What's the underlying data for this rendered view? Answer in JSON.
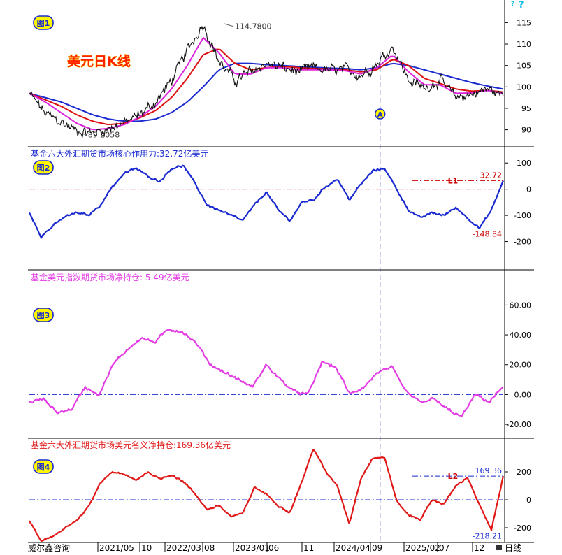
{
  "help_icon": "question-mark-icon",
  "footer": {
    "source": "威尔鑫咨询",
    "dates": [
      "2021/05",
      "10",
      "2022/03",
      "08",
      "2023/01",
      "06",
      "11",
      "2024/04",
      "09",
      "2025/02",
      "07",
      "12"
    ],
    "period": "日线"
  },
  "colors": {
    "price": "#111111",
    "ma_short": "#dd22dd",
    "ma_mid": "#dd1111",
    "ma_long": "#1a2ad0",
    "panel2": "#1a2ad0",
    "panel3": "#e43ce4",
    "panel4": "#e01818",
    "ref_red": "#cc0000",
    "ref_blue": "#1a2ad0",
    "title_red": "#ff2200",
    "badge": "#fff700"
  },
  "chart_data": [
    {
      "type": "line",
      "badge": "图1",
      "title": "美元日K线",
      "ylim": [
        87,
        118
      ],
      "yticks": [
        90,
        95,
        100,
        105,
        110,
        115
      ],
      "annotations": [
        {
          "label": "114.7800",
          "x": 0.41,
          "y": 114.78
        },
        {
          "label": "89.2058",
          "x": 0.1,
          "y": 89.21
        }
      ],
      "marker": {
        "label": "A",
        "x": 0.74
      },
      "series": [
        {
          "name": "",
          "role": "price",
          "values": [
            98.5,
            93.8,
            91.8,
            89.8,
            89.2,
            90.3,
            91.5,
            93.5,
            96.5,
            101.5,
            108.5,
            114.78,
            106,
            101.5,
            103.5,
            105.5,
            104.5,
            103.5,
            104.5,
            103.8,
            104,
            102.8,
            105.5,
            109.5,
            101.5,
            99.8,
            101.5,
            97.5,
            98.3,
            99.5,
            98
          ]
        },
        {
          "name": "",
          "role": "ma_short",
          "values": [
            98.5,
            96.5,
            94,
            91.5,
            90,
            90.3,
            91.2,
            93,
            95.5,
            99.5,
            105,
            111.5,
            108,
            103,
            103,
            104.5,
            104.5,
            104,
            104,
            104,
            103.8,
            103,
            104.5,
            107.5,
            103.5,
            100.5,
            100.5,
            98.5,
            98.6,
            99.2,
            98.5
          ]
        },
        {
          "name": "",
          "role": "ma_mid",
          "values": [
            98.5,
            97,
            95.5,
            93.5,
            92,
            91.2,
            91.5,
            92.8,
            94.5,
            97.5,
            102,
            107.5,
            109,
            105.5,
            104,
            104.5,
            104.8,
            104.5,
            104.3,
            104.2,
            104,
            103.5,
            104,
            106.5,
            105,
            102,
            100.8,
            99.5,
            99,
            99.2,
            98.8
          ]
        },
        {
          "name": "",
          "role": "ma_long",
          "values": [
            98.5,
            97.5,
            96.5,
            95,
            93.5,
            92.5,
            92,
            92,
            92.5,
            94,
            96.5,
            100,
            104,
            105.5,
            105.5,
            105.2,
            105,
            104.8,
            104.6,
            104.4,
            104.3,
            104,
            104.5,
            105.5,
            105,
            104,
            103,
            102,
            101,
            100.2,
            99.5
          ]
        }
      ]
    },
    {
      "type": "line",
      "badge": "图2",
      "title": "基金六大外汇期货市场核心作用力:32.72亿美元",
      "ylim": [
        -300,
        130
      ],
      "yticks": [
        -200,
        -100,
        0,
        100
      ],
      "reference_lines": [
        {
          "label": "L1",
          "y": 32.72
        },
        {
          "label": "",
          "y": 0
        }
      ],
      "annotations": [
        {
          "label": "32.72",
          "y": 32.72
        },
        {
          "label": "-148.84",
          "y": -148.84
        }
      ],
      "series": [
        {
          "name": "",
          "values": [
            -90,
            -180,
            -140,
            -105,
            -90,
            -100,
            -60,
            10,
            60,
            80,
            50,
            30,
            80,
            90,
            20,
            -60,
            -80,
            -100,
            -120,
            -60,
            -10,
            -80,
            -120,
            -50,
            -40,
            10,
            40,
            -40,
            20,
            70,
            80,
            0,
            -80,
            -110,
            -90,
            -100,
            -70,
            -110,
            -148.84,
            -80,
            32.72
          ]
        }
      ]
    },
    {
      "type": "line",
      "badge": "图3",
      "title": "基金美元指数期货市场净持仓:  5.49亿美元",
      "ylim": [
        -27,
        78
      ],
      "yticks": [
        -20,
        0,
        20,
        40,
        60
      ],
      "ytick_labels": [
        "-20.00",
        "0.00",
        "20.00",
        "40.00",
        "60.00"
      ],
      "reference_lines": [
        {
          "label": "",
          "y": 0
        }
      ],
      "series": [
        {
          "name": "",
          "values": [
            -5,
            -3,
            -12,
            -10,
            5,
            0,
            20,
            30,
            38,
            35,
            44,
            42,
            34,
            20,
            15,
            10,
            5,
            20,
            10,
            2,
            0,
            22,
            18,
            0,
            5,
            15,
            18,
            2,
            -5,
            -3,
            -10,
            -15,
            0,
            -5,
            5.49
          ]
        }
      ]
    },
    {
      "type": "line",
      "badge": "图4",
      "title": "基金六大外汇期货市场美元名义净持仓:169.36亿美元",
      "ylim": [
        -300,
        380
      ],
      "yticks": [
        -200,
        0,
        200
      ],
      "reference_lines": [
        {
          "label": "L2",
          "y": 169.36
        },
        {
          "label": "",
          "y": 0
        }
      ],
      "annotations": [
        {
          "label": "169.36",
          "y": 169.36
        },
        {
          "label": "-218.21",
          "y": -218.21
        }
      ],
      "series": [
        {
          "name": "",
          "values": [
            -150,
            -300,
            -260,
            -200,
            -150,
            -50,
            120,
            200,
            180,
            140,
            200,
            150,
            180,
            130,
            40,
            -70,
            -40,
            -120,
            -100,
            90,
            40,
            -40,
            -90,
            130,
            370,
            200,
            100,
            -170,
            160,
            300,
            300,
            -10,
            -110,
            -140,
            0,
            -30,
            100,
            160,
            -40,
            -218.21,
            169.36
          ]
        }
      ]
    }
  ]
}
